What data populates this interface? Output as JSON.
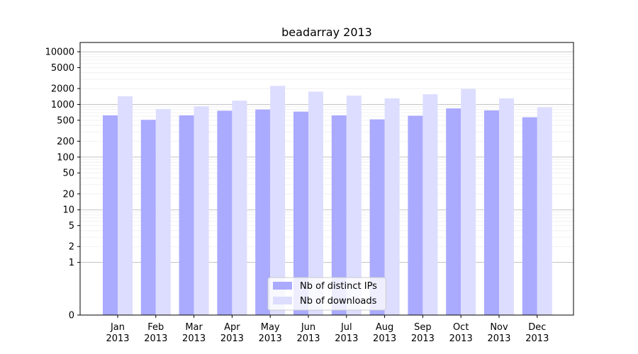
{
  "chart_data": {
    "type": "bar",
    "title": "beadarray 2013",
    "xlabel": "",
    "ylabel": "",
    "yscale": "symlog",
    "ylim": [
      0,
      15000
    ],
    "yticks": [
      0,
      1,
      2,
      5,
      10,
      20,
      50,
      100,
      200,
      500,
      1000,
      2000,
      5000,
      10000
    ],
    "grid": true,
    "legend_position": "bottom-center",
    "categories": [
      "Jan",
      "Feb",
      "Mar",
      "Apr",
      "May",
      "Jun",
      "Jul",
      "Aug",
      "Sep",
      "Oct",
      "Nov",
      "Dec"
    ],
    "category_sublabels": [
      "2013",
      "2013",
      "2013",
      "2013",
      "2013",
      "2013",
      "2013",
      "2013",
      "2013",
      "2013",
      "2013",
      "2013"
    ],
    "series": [
      {
        "name": "Nb of distinct IPs",
        "color": "#aaaaff",
        "values": [
          620,
          510,
          620,
          760,
          800,
          730,
          620,
          520,
          610,
          840,
          770,
          570
        ]
      },
      {
        "name": "Nb of downloads",
        "color": "#ddddff",
        "values": [
          1430,
          820,
          920,
          1180,
          2250,
          1750,
          1470,
          1300,
          1560,
          1970,
          1300,
          880
        ]
      }
    ]
  }
}
